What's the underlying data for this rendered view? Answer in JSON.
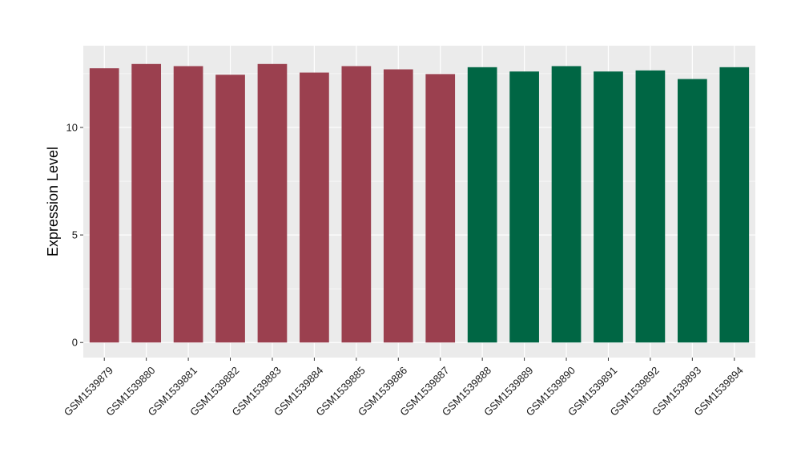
{
  "chart_data": {
    "type": "bar",
    "title": "",
    "xlabel": "",
    "ylabel": "Expression Level",
    "ylim": [
      -0.7,
      13.8
    ],
    "yticks": [
      0,
      5,
      10
    ],
    "grid": true,
    "legend": "none",
    "categories": [
      "GSM1539879",
      "GSM1539880",
      "GSM1539881",
      "GSM1539882",
      "GSM1539883",
      "GSM1539884",
      "GSM1539885",
      "GSM1539886",
      "GSM1539887",
      "GSM1539888",
      "GSM1539889",
      "GSM1539890",
      "GSM1539891",
      "GSM1539892",
      "GSM1539893",
      "GSM1539894"
    ],
    "values": [
      12.75,
      12.95,
      12.85,
      12.45,
      12.95,
      12.55,
      12.85,
      12.7,
      12.48,
      12.8,
      12.6,
      12.85,
      12.6,
      12.65,
      12.25,
      12.8
    ],
    "bar_colors": [
      "#9b404f",
      "#9b404f",
      "#9b404f",
      "#9b404f",
      "#9b404f",
      "#9b404f",
      "#9b404f",
      "#9b404f",
      "#9b404f",
      "#006644",
      "#006644",
      "#006644",
      "#006644",
      "#006644",
      "#006644",
      "#006644"
    ],
    "panel_background": "#ebebeb",
    "grid_color": "#ffffff"
  }
}
